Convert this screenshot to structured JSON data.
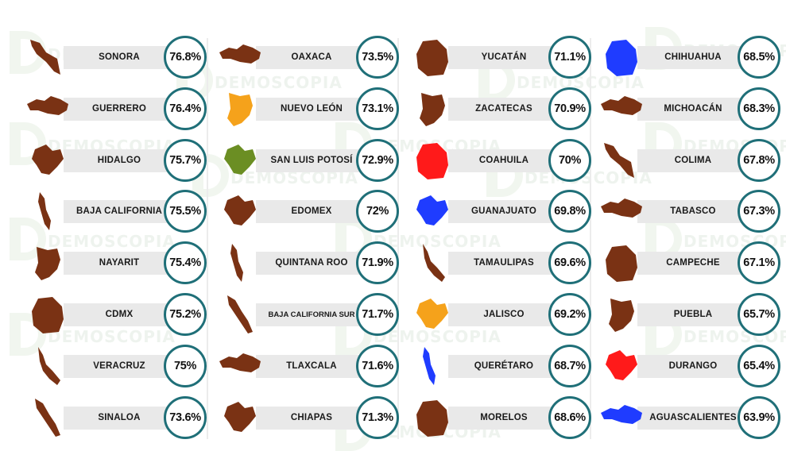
{
  "watermark": "DEMOSCOPIA",
  "colors": {
    "default_state": "#7a3214",
    "ring": "#1f6f78",
    "label_bar": "#e9e9e9",
    "highlight_orange": "#f5a21b",
    "highlight_green": "#6b8e23",
    "highlight_red": "#ff1a1a",
    "highlight_blue": "#1f3cff"
  },
  "chart_data": {
    "type": "table",
    "unit": "%",
    "entries": [
      {
        "state": "SONORA",
        "value": "76.8%",
        "color": "#7a3214",
        "shape": 0
      },
      {
        "state": "GUERRERO",
        "value": "76.4%",
        "color": "#7a3214",
        "shape": 1
      },
      {
        "state": "HIDALGO",
        "value": "75.7%",
        "color": "#7a3214",
        "shape": 2
      },
      {
        "state": "BAJA CALIFORNIA",
        "value": "75.5%",
        "color": "#7a3214",
        "shape": 3
      },
      {
        "state": "NAYARIT",
        "value": "75.4%",
        "color": "#7a3214",
        "shape": 4
      },
      {
        "state": "CDMX",
        "value": "75.2%",
        "color": "#7a3214",
        "shape": 5
      },
      {
        "state": "VERACRUZ",
        "value": "75%",
        "color": "#7a3214",
        "shape": 6
      },
      {
        "state": "SINALOA",
        "value": "73.6%",
        "color": "#7a3214",
        "shape": 7
      },
      {
        "state": "OAXACA",
        "value": "73.5%",
        "color": "#7a3214",
        "shape": 1
      },
      {
        "state": "NUEVO LEÓN",
        "value": "73.1%",
        "color": "#f5a21b",
        "shape": 4
      },
      {
        "state": "SAN LUIS POTOSÍ",
        "value": "72.9%",
        "color": "#6b8e23",
        "shape": 2
      },
      {
        "state": "EDOMEX",
        "value": "72%",
        "color": "#7a3214",
        "shape": 2
      },
      {
        "state": "QUINTANA ROO",
        "value": "71.9%",
        "color": "#7a3214",
        "shape": 3
      },
      {
        "state": "BAJA CALIFORNIA SUR",
        "value": "71.7%",
        "color": "#7a3214",
        "shape": 7
      },
      {
        "state": "TLAXCALA",
        "value": "71.6%",
        "color": "#7a3214",
        "shape": 1
      },
      {
        "state": "CHIAPAS",
        "value": "71.3%",
        "color": "#7a3214",
        "shape": 2
      },
      {
        "state": "YUCATÁN",
        "value": "71.1%",
        "color": "#7a3214",
        "shape": 5
      },
      {
        "state": "ZACATECAS",
        "value": "70.9%",
        "color": "#7a3214",
        "shape": 4
      },
      {
        "state": "COAHUILA",
        "value": "70%",
        "color": "#ff1a1a",
        "shape": 5
      },
      {
        "state": "GUANAJUATO",
        "value": "69.8%",
        "color": "#1f3cff",
        "shape": 2
      },
      {
        "state": "TAMAULIPAS",
        "value": "69.6%",
        "color": "#7a3214",
        "shape": 6
      },
      {
        "state": "JALISCO",
        "value": "69.2%",
        "color": "#f5a21b",
        "shape": 2
      },
      {
        "state": "QUERÉTARO",
        "value": "68.7%",
        "color": "#1f3cff",
        "shape": 3
      },
      {
        "state": "MORELOS",
        "value": "68.6%",
        "color": "#7a3214",
        "shape": 5
      },
      {
        "state": "CHIHUAHUA",
        "value": "68.5%",
        "color": "#1f3cff",
        "shape": 5
      },
      {
        "state": "MICHOACÁN",
        "value": "68.3%",
        "color": "#7a3214",
        "shape": 1
      },
      {
        "state": "COLIMA",
        "value": "67.8%",
        "color": "#7a3214",
        "shape": 0
      },
      {
        "state": "TABASCO",
        "value": "67.3%",
        "color": "#7a3214",
        "shape": 1
      },
      {
        "state": "CAMPECHE",
        "value": "67.1%",
        "color": "#7a3214",
        "shape": 5
      },
      {
        "state": "PUEBLA",
        "value": "65.7%",
        "color": "#7a3214",
        "shape": 4
      },
      {
        "state": "DURANGO",
        "value": "65.4%",
        "color": "#ff1a1a",
        "shape": 2
      },
      {
        "state": "AGUASCALIENTES",
        "value": "63.9%",
        "color": "#1f3cff",
        "shape": 1
      }
    ]
  }
}
